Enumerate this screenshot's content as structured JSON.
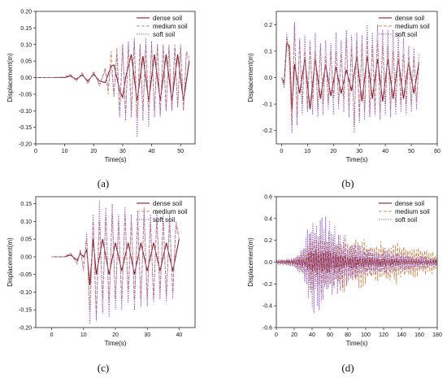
{
  "figure": {
    "panel_labels": [
      "(a)",
      "(b)",
      "(c)",
      "(d)"
    ]
  },
  "chart_data": [
    {
      "panel": "(a)",
      "type": "line",
      "xlabel": "Time(s)",
      "ylabel": "Displacement(m)",
      "xlim": [
        0,
        55
      ],
      "ylim": [
        -0.2,
        0.2
      ],
      "xticks": [
        0,
        10,
        20,
        30,
        40,
        50
      ],
      "yticks": [
        -0.2,
        -0.15,
        -0.1,
        -0.05,
        0.0,
        0.05,
        0.1,
        0.15,
        0.2
      ],
      "ytick_labels": [
        "-0.20",
        "-0.15",
        "-0.10",
        "-0.05",
        "0.00",
        "0.05",
        "0.10",
        "0.15",
        "0.20"
      ],
      "legend_position": "top-right",
      "grid": false,
      "series": [
        {
          "name": "dense soil",
          "color": "#8b1a1a",
          "dash": "solid",
          "x": [
            0,
            5,
            10,
            12,
            14,
            16,
            18,
            20,
            22,
            24,
            26,
            27,
            28,
            29,
            30,
            31,
            33,
            35,
            37,
            39,
            41,
            43,
            45,
            47,
            49,
            51,
            53
          ],
          "y": [
            0,
            0,
            0,
            0.005,
            -0.005,
            0.008,
            -0.01,
            0.01,
            -0.01,
            -0.015,
            0.035,
            0.038,
            0.0,
            -0.04,
            -0.06,
            0.0,
            0.07,
            -0.07,
            0.065,
            -0.07,
            0.07,
            -0.07,
            0.07,
            -0.07,
            0.07,
            -0.07,
            0.05
          ]
        },
        {
          "name": "medium soil",
          "color": "#d08c5a",
          "dash": "dash",
          "x": [
            0,
            5,
            10,
            12,
            14,
            16,
            18,
            20,
            22,
            24,
            25,
            26,
            27,
            28,
            29,
            30,
            31,
            32,
            33,
            34,
            35,
            36,
            37,
            38,
            39,
            40,
            41,
            42,
            43,
            44,
            45,
            46,
            47,
            48,
            49,
            50,
            51,
            52,
            53
          ],
          "y": [
            0,
            0,
            0.002,
            0.01,
            -0.01,
            0.015,
            -0.02,
            0.02,
            -0.025,
            0.03,
            -0.05,
            0.08,
            -0.06,
            0.09,
            -0.1,
            0.1,
            -0.11,
            0.1,
            -0.1,
            0.11,
            -0.12,
            0.1,
            -0.1,
            0.1,
            -0.1,
            0.1,
            -0.1,
            0.1,
            -0.11,
            0.1,
            -0.1,
            0.1,
            -0.1,
            0.1,
            -0.09,
            0.1,
            -0.1,
            0.08,
            0.06
          ]
        },
        {
          "name": "soft soil",
          "color": "#8a4fd0",
          "dash": "dot",
          "x": [
            0,
            5,
            10,
            12,
            14,
            16,
            18,
            20,
            22,
            24,
            25,
            26,
            27,
            28,
            29,
            30,
            31,
            32,
            33,
            34,
            35,
            36,
            37,
            38,
            39,
            40,
            41,
            42,
            43,
            44,
            45,
            46,
            47,
            48,
            49,
            50,
            51,
            52,
            53
          ],
          "y": [
            0,
            0,
            0,
            0.008,
            -0.01,
            0.012,
            -0.015,
            0.015,
            -0.02,
            0.02,
            -0.03,
            0.04,
            -0.05,
            0.07,
            -0.12,
            0.1,
            -0.13,
            0.11,
            -0.12,
            0.12,
            -0.18,
            0.1,
            -0.13,
            0.12,
            -0.15,
            0.11,
            -0.12,
            0.1,
            -0.12,
            0.1,
            -0.1,
            0.09,
            -0.1,
            0.09,
            -0.09,
            0.09,
            -0.1,
            0.07,
            0.05
          ]
        }
      ]
    },
    {
      "panel": "(b)",
      "type": "line",
      "xlabel": "Time(s)",
      "ylabel": "Displacement(m)",
      "xlim": [
        -2,
        60
      ],
      "ylim": [
        -0.25,
        0.25
      ],
      "xticks": [
        0,
        10,
        20,
        30,
        40,
        50,
        60
      ],
      "yticks": [
        -0.2,
        -0.1,
        0.0,
        0.1,
        0.2
      ],
      "ytick_labels": [
        "-0.2",
        "-0.1",
        "0.0",
        "0.1",
        "0.2"
      ],
      "legend_position": "top-right",
      "grid": false,
      "series": [
        {
          "name": "dense soil",
          "color": "#8b1a1a",
          "dash": "solid",
          "x": [
            0,
            1,
            2,
            3,
            4,
            5,
            7,
            9,
            11,
            13,
            15,
            17,
            19,
            21,
            23,
            25,
            27,
            29,
            31,
            33,
            35,
            37,
            39,
            41,
            43,
            45,
            47,
            49,
            51,
            53
          ],
          "y": [
            0,
            -0.02,
            0.13,
            0.12,
            -0.12,
            0.05,
            -0.06,
            0.07,
            -0.12,
            0.07,
            -0.08,
            0.05,
            -0.07,
            0.04,
            -0.06,
            0.03,
            -0.05,
            0.08,
            -0.09,
            0.08,
            -0.08,
            0.07,
            -0.09,
            0.07,
            -0.08,
            0.07,
            -0.08,
            0.06,
            -0.06,
            0.06
          ]
        },
        {
          "name": "medium soil",
          "color": "#d08c5a",
          "dash": "dash",
          "x": [
            0,
            1,
            2,
            3,
            4,
            5,
            6,
            7,
            8,
            9,
            10,
            11,
            12,
            13,
            14,
            15,
            16,
            17,
            18,
            19,
            20,
            21,
            22,
            23,
            24,
            25,
            26,
            27,
            28,
            29,
            30,
            31,
            32,
            33,
            34,
            35,
            36,
            37,
            38,
            39,
            40,
            41,
            42,
            43,
            44,
            45,
            46,
            47,
            48,
            49,
            50,
            51,
            52,
            53
          ],
          "y": [
            0,
            -0.03,
            0.15,
            0.1,
            -0.18,
            0.2,
            -0.15,
            0.14,
            -0.1,
            0.1,
            -0.12,
            0.12,
            -0.08,
            0.1,
            -0.12,
            0.12,
            -0.1,
            0.08,
            -0.1,
            0.1,
            -0.08,
            0.1,
            -0.1,
            0.09,
            -0.08,
            0.15,
            -0.12,
            0.12,
            -0.18,
            0.14,
            -0.15,
            0.13,
            -0.13,
            0.15,
            -0.14,
            0.12,
            -0.12,
            0.14,
            -0.13,
            0.12,
            -0.1,
            0.12,
            -0.12,
            0.1,
            -0.11,
            0.1,
            -0.1,
            0.09,
            -0.1,
            0.08,
            -0.1,
            0.08,
            -0.09,
            0.06
          ]
        },
        {
          "name": "soft soil",
          "color": "#8a4fd0",
          "dash": "dot",
          "x": [
            0,
            1,
            2,
            3,
            4,
            5,
            6,
            7,
            8,
            9,
            10,
            11,
            12,
            13,
            14,
            15,
            16,
            17,
            18,
            19,
            20,
            21,
            22,
            23,
            24,
            25,
            26,
            27,
            28,
            29,
            30,
            31,
            32,
            33,
            34,
            35,
            36,
            37,
            38,
            39,
            40,
            41,
            42,
            43,
            44,
            45,
            46,
            47,
            48,
            49,
            50,
            51,
            52,
            53
          ],
          "y": [
            0,
            -0.04,
            0.17,
            0.05,
            -0.21,
            0.21,
            -0.18,
            0.15,
            -0.14,
            0.16,
            -0.13,
            0.14,
            -0.14,
            0.17,
            -0.15,
            0.13,
            -0.14,
            0.14,
            -0.12,
            0.13,
            -0.14,
            0.17,
            -0.12,
            0.14,
            -0.13,
            0.18,
            -0.15,
            0.16,
            -0.21,
            0.17,
            -0.17,
            0.16,
            -0.16,
            0.2,
            -0.15,
            0.17,
            -0.14,
            0.2,
            -0.16,
            0.18,
            -0.14,
            0.18,
            -0.15,
            0.18,
            -0.14,
            0.17,
            -0.13,
            0.15,
            -0.14,
            0.12,
            -0.13,
            0.11,
            -0.12,
            0.09
          ]
        }
      ]
    },
    {
      "panel": "(c)",
      "type": "line",
      "xlabel": "Time(s)",
      "ylabel": "Displacement(m)",
      "xlim": [
        -5,
        45
      ],
      "ylim": [
        -0.2,
        0.17
      ],
      "xticks": [
        0,
        10,
        20,
        30,
        40
      ],
      "yticks": [
        -0.2,
        -0.15,
        -0.1,
        -0.05,
        0.0,
        0.05,
        0.1,
        0.15
      ],
      "ytick_labels": [
        "-0.20",
        "-0.15",
        "-0.10",
        "-0.05",
        "0.00",
        "0.05",
        "0.10",
        "0.15"
      ],
      "legend_position": "top-right",
      "grid": false,
      "series": [
        {
          "name": "dense soil",
          "color": "#8b1a1a",
          "dash": "solid",
          "x": [
            0,
            4,
            6,
            8,
            9,
            10,
            11,
            12,
            13,
            14,
            16,
            18,
            20,
            22,
            24,
            26,
            28,
            30,
            32,
            34,
            36,
            38,
            40
          ],
          "y": [
            0,
            0,
            0.005,
            -0.01,
            0.01,
            0.0,
            0.02,
            -0.08,
            0.05,
            -0.05,
            0.05,
            -0.05,
            0.04,
            -0.04,
            0.04,
            -0.05,
            0.04,
            -0.04,
            0.04,
            -0.04,
            0.04,
            -0.04,
            0.05
          ]
        },
        {
          "name": "medium soil",
          "color": "#d08c5a",
          "dash": "dash",
          "x": [
            0,
            4,
            6,
            8,
            9,
            10,
            11,
            12,
            13,
            14,
            15,
            16,
            17,
            18,
            19,
            20,
            21,
            22,
            23,
            24,
            25,
            26,
            27,
            28,
            29,
            30,
            31,
            32,
            33,
            34,
            35,
            36,
            37,
            38,
            39,
            40
          ],
          "y": [
            0,
            0,
            0.01,
            -0.02,
            0.02,
            -0.03,
            0.05,
            -0.15,
            0.1,
            -0.17,
            0.1,
            -0.12,
            0.12,
            -0.13,
            0.12,
            -0.12,
            0.1,
            -0.12,
            0.12,
            -0.1,
            0.1,
            -0.12,
            0.1,
            -0.12,
            0.12,
            -0.12,
            0.1,
            -0.12,
            0.11,
            -0.1,
            0.1,
            -0.11,
            0.1,
            -0.1,
            0.09,
            0.05
          ]
        },
        {
          "name": "soft soil",
          "color": "#8a4fd0",
          "dash": "dot",
          "x": [
            0,
            4,
            6,
            8,
            9,
            10,
            11,
            12,
            13,
            14,
            15,
            16,
            17,
            18,
            19,
            20,
            21,
            22,
            23,
            24,
            25,
            26,
            27,
            28,
            29,
            30,
            31,
            32,
            33,
            34,
            35,
            36,
            37,
            38,
            39,
            40
          ],
          "y": [
            0,
            0,
            0.01,
            -0.02,
            0.02,
            -0.04,
            0.07,
            -0.19,
            0.12,
            -0.18,
            0.16,
            -0.16,
            0.14,
            -0.17,
            0.15,
            -0.15,
            0.12,
            -0.15,
            0.14,
            -0.13,
            0.12,
            -0.15,
            0.13,
            -0.14,
            0.14,
            -0.14,
            0.12,
            -0.13,
            0.13,
            -0.12,
            0.12,
            -0.13,
            0.12,
            -0.12,
            0.1,
            0.06
          ]
        }
      ]
    },
    {
      "panel": "(d)",
      "type": "line",
      "xlabel": "Time(s)",
      "ylabel": "Displacement(m)",
      "xlim": [
        0,
        180
      ],
      "ylim": [
        -0.6,
        0.6
      ],
      "xticks": [
        0,
        20,
        40,
        60,
        80,
        100,
        120,
        140,
        160,
        180
      ],
      "yticks": [
        -0.6,
        -0.4,
        -0.2,
        0.0,
        0.2,
        0.4,
        0.6
      ],
      "ytick_labels": [
        "-0.6",
        "-0.4",
        "-0.2",
        "0.0",
        "0.2",
        "0.4",
        "0.6"
      ],
      "legend_position": "top-right",
      "grid": false,
      "series": [
        {
          "name": "dense soil",
          "color": "#8b1a1a",
          "dash": "solid",
          "amplitude_profile": {
            "x": [
              0,
              20,
              30,
              40,
              50,
              60,
              70,
              80,
              100,
              120,
              140,
              160,
              180
            ],
            "amp": [
              0.01,
              0.02,
              0.05,
              0.12,
              0.14,
              0.12,
              0.1,
              0.08,
              0.05,
              0.04,
              0.03,
              0.02,
              0.015
            ]
          }
        },
        {
          "name": "medium soil",
          "color": "#d08c5a",
          "dash": "dash",
          "amplitude_profile": {
            "x": [
              0,
              20,
              30,
              40,
              50,
              60,
              70,
              80,
              100,
              120,
              140,
              160,
              180
            ],
            "amp": [
              0.02,
              0.05,
              0.15,
              0.3,
              0.35,
              0.32,
              0.3,
              0.27,
              0.24,
              0.22,
              0.2,
              0.15,
              0.1
            ]
          }
        },
        {
          "name": "soft soil",
          "color": "#8a4fd0",
          "dash": "dot",
          "amplitude_profile": {
            "x": [
              0,
              20,
              30,
              40,
              50,
              60,
              70,
              80,
              100,
              120,
              140,
              160,
              180
            ],
            "amp": [
              0.02,
              0.05,
              0.2,
              0.5,
              0.55,
              0.4,
              0.3,
              0.22,
              0.15,
              0.12,
              0.1,
              0.07,
              0.05
            ]
          }
        }
      ]
    }
  ]
}
